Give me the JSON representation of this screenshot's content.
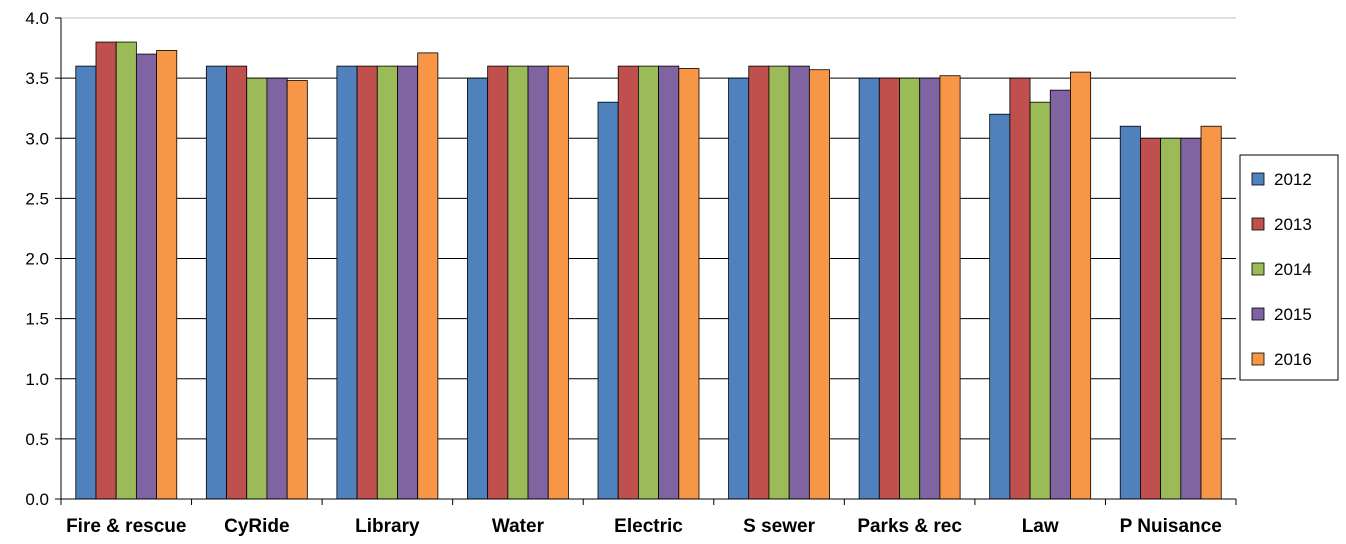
{
  "chart_data": {
    "type": "bar",
    "title": "",
    "xlabel": "",
    "ylabel": "",
    "ylim": [
      0,
      4
    ],
    "y_ticks": [
      "0.0",
      "0.5",
      "1.0",
      "1.5",
      "2.0",
      "2.5",
      "3.0",
      "3.5",
      "4.0"
    ],
    "grid": true,
    "legend_position": "right",
    "categories": [
      "Fire & rescue",
      "CyRide",
      "Library",
      "Water",
      "Electric",
      "S sewer",
      "Parks & rec",
      "Law",
      "P Nuisance"
    ],
    "series": [
      {
        "name": "2012",
        "color": "#4F81BD",
        "values": [
          3.6,
          3.6,
          3.6,
          3.5,
          3.3,
          3.5,
          3.5,
          3.2,
          3.1
        ]
      },
      {
        "name": "2013",
        "color": "#C0504D",
        "values": [
          3.8,
          3.6,
          3.6,
          3.6,
          3.6,
          3.6,
          3.5,
          3.5,
          3.0
        ]
      },
      {
        "name": "2014",
        "color": "#9BBB59",
        "values": [
          3.8,
          3.5,
          3.6,
          3.6,
          3.6,
          3.6,
          3.5,
          3.3,
          3.0
        ]
      },
      {
        "name": "2015",
        "color": "#8064A2",
        "values": [
          3.7,
          3.5,
          3.6,
          3.6,
          3.6,
          3.6,
          3.5,
          3.4,
          3.0
        ]
      },
      {
        "name": "2016",
        "color": "#F79646",
        "values": [
          3.73,
          3.48,
          3.71,
          3.6,
          3.58,
          3.57,
          3.52,
          3.55,
          3.1
        ]
      }
    ]
  }
}
